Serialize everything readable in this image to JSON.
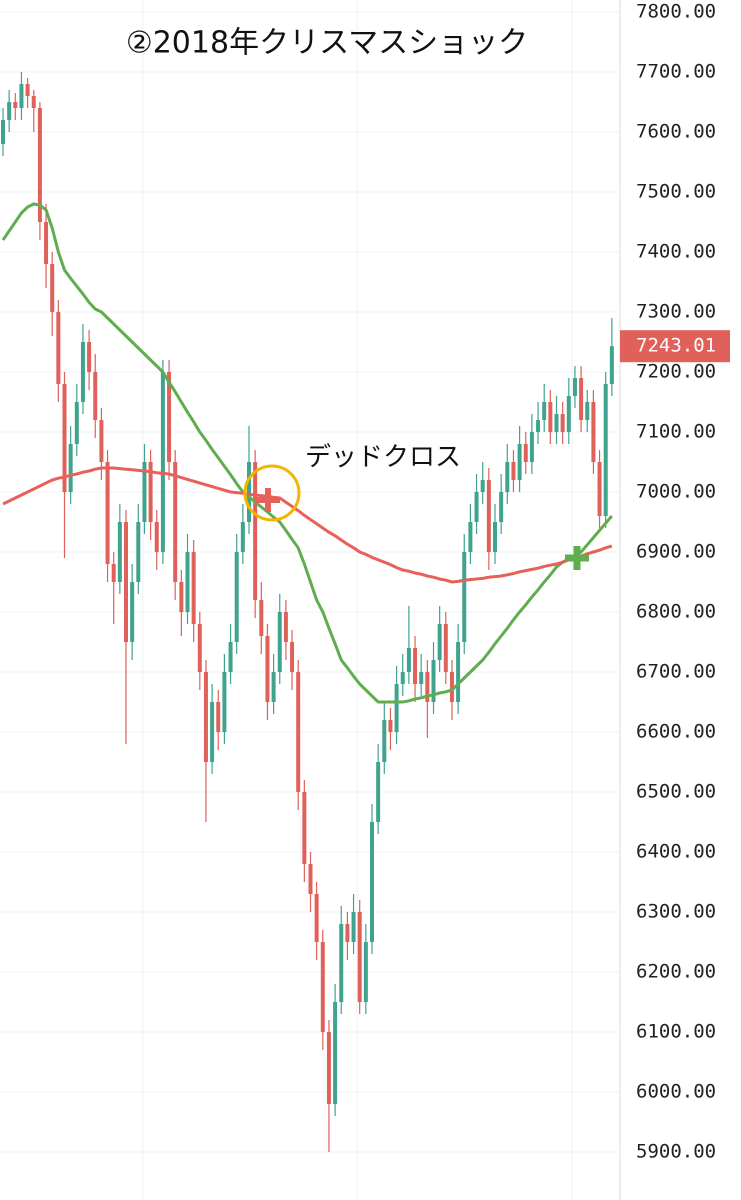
{
  "chart_data": {
    "type": "candlestick",
    "title": "②2018年クリスマスショック",
    "annotations": [
      "デッドクロス"
    ],
    "up_color": "#3fa38e",
    "down_color": "#e0605a",
    "ylim": [
      5820,
      7820
    ],
    "yticks": [
      {
        "value": 5900,
        "label": "5900.00"
      },
      {
        "value": 6000,
        "label": "6000.00"
      },
      {
        "value": 6100,
        "label": "6100.00"
      },
      {
        "value": 6200,
        "label": "6200.00"
      },
      {
        "value": 6300,
        "label": "6300.00"
      },
      {
        "value": 6400,
        "label": "6400.00"
      },
      {
        "value": 6500,
        "label": "6500.00"
      },
      {
        "value": 6600,
        "label": "6600.00"
      },
      {
        "value": 6700,
        "label": "6700.00"
      },
      {
        "value": 6800,
        "label": "6800.00"
      },
      {
        "value": 6900,
        "label": "6900.00"
      },
      {
        "value": 7000,
        "label": "7000.00"
      },
      {
        "value": 7100,
        "label": "7100.00"
      },
      {
        "value": 7200,
        "label": "7200.00"
      },
      {
        "value": 7300,
        "label": "7300.00"
      },
      {
        "value": 7400,
        "label": "7400.00"
      },
      {
        "value": 7500,
        "label": "7500.00"
      },
      {
        "value": 7600,
        "label": "7600.00"
      },
      {
        "value": 7700,
        "label": "7700.00"
      },
      {
        "value": 7800,
        "label": "7800.00"
      }
    ],
    "ohlc": [
      [
        7580,
        7640,
        7560,
        7620
      ],
      [
        7620,
        7670,
        7600,
        7650
      ],
      [
        7650,
        7665,
        7620,
        7640
      ],
      [
        7640,
        7700,
        7620,
        7680
      ],
      [
        7680,
        7690,
        7640,
        7660
      ],
      [
        7660,
        7670,
        7600,
        7640
      ],
      [
        7640,
        7650,
        7420,
        7450
      ],
      [
        7450,
        7480,
        7340,
        7380
      ],
      [
        7380,
        7400,
        7260,
        7300
      ],
      [
        7300,
        7320,
        7150,
        7180
      ],
      [
        7180,
        7200,
        6890,
        7000
      ],
      [
        7000,
        7110,
        6980,
        7080
      ],
      [
        7080,
        7180,
        7060,
        7150
      ],
      [
        7150,
        7280,
        7130,
        7250
      ],
      [
        7250,
        7270,
        7170,
        7200
      ],
      [
        7200,
        7230,
        7090,
        7120
      ],
      [
        7120,
        7140,
        7020,
        7050
      ],
      [
        7050,
        7070,
        6850,
        6880
      ],
      [
        6880,
        6900,
        6780,
        6850
      ],
      [
        6850,
        6980,
        6830,
        6950
      ],
      [
        6950,
        6970,
        6580,
        6750
      ],
      [
        6750,
        6880,
        6720,
        6850
      ],
      [
        6850,
        6980,
        6830,
        6950
      ],
      [
        6950,
        7080,
        6930,
        7050
      ],
      [
        7050,
        7070,
        6920,
        6950
      ],
      [
        6950,
        6970,
        6870,
        6900
      ],
      [
        6900,
        7220,
        6880,
        7200
      ],
      [
        7200,
        7220,
        7020,
        7050
      ],
      [
        7050,
        7070,
        6820,
        6850
      ],
      [
        6850,
        6870,
        6760,
        6800
      ],
      [
        6800,
        6930,
        6780,
        6900
      ],
      [
        6900,
        6920,
        6750,
        6780
      ],
      [
        6780,
        6800,
        6670,
        6700
      ],
      [
        6700,
        6720,
        6450,
        6550
      ],
      [
        6550,
        6680,
        6530,
        6650
      ],
      [
        6650,
        6670,
        6570,
        6600
      ],
      [
        6600,
        6730,
        6580,
        6700
      ],
      [
        6700,
        6780,
        6680,
        6750
      ],
      [
        6750,
        6930,
        6730,
        6900
      ],
      [
        6900,
        6980,
        6880,
        6950
      ],
      [
        6950,
        7110,
        6930,
        7050
      ],
      [
        7050,
        7070,
        6790,
        6820
      ],
      [
        6820,
        6850,
        6730,
        6760
      ],
      [
        6760,
        6780,
        6620,
        6650
      ],
      [
        6650,
        6730,
        6630,
        6700
      ],
      [
        6700,
        6830,
        6680,
        6800
      ],
      [
        6800,
        6820,
        6720,
        6750
      ],
      [
        6750,
        6770,
        6670,
        6700
      ],
      [
        6700,
        6720,
        6470,
        6500
      ],
      [
        6500,
        6520,
        6350,
        6380
      ],
      [
        6380,
        6400,
        6300,
        6330
      ],
      [
        6330,
        6350,
        6220,
        6250
      ],
      [
        6250,
        6270,
        6070,
        6100
      ],
      [
        6100,
        6120,
        5900,
        5980
      ],
      [
        5980,
        6180,
        5960,
        6150
      ],
      [
        6150,
        6310,
        6130,
        6280
      ],
      [
        6280,
        6300,
        6220,
        6250
      ],
      [
        6250,
        6330,
        6230,
        6300
      ],
      [
        6300,
        6320,
        6130,
        6150
      ],
      [
        6150,
        6280,
        6130,
        6250
      ],
      [
        6250,
        6480,
        6230,
        6450
      ],
      [
        6450,
        6580,
        6430,
        6550
      ],
      [
        6550,
        6650,
        6530,
        6620
      ],
      [
        6620,
        6640,
        6570,
        6600
      ],
      [
        6600,
        6710,
        6580,
        6680
      ],
      [
        6680,
        6730,
        6660,
        6700
      ],
      [
        6700,
        6810,
        6680,
        6740
      ],
      [
        6740,
        6760,
        6650,
        6680
      ],
      [
        6680,
        6730,
        6660,
        6700
      ],
      [
        6700,
        6720,
        6590,
        6650
      ],
      [
        6650,
        6750,
        6630,
        6720
      ],
      [
        6720,
        6810,
        6700,
        6780
      ],
      [
        6780,
        6800,
        6680,
        6700
      ],
      [
        6700,
        6720,
        6620,
        6650
      ],
      [
        6650,
        6780,
        6630,
        6750
      ],
      [
        6750,
        6930,
        6730,
        6900
      ],
      [
        6900,
        6980,
        6880,
        6950
      ],
      [
        6950,
        7030,
        6930,
        7000
      ],
      [
        7000,
        7050,
        6980,
        7020
      ],
      [
        7020,
        7040,
        6870,
        6900
      ],
      [
        6900,
        6980,
        6880,
        6950
      ],
      [
        6950,
        7030,
        6930,
        7000
      ],
      [
        7000,
        7080,
        6980,
        7050
      ],
      [
        7050,
        7070,
        7000,
        7020
      ],
      [
        7020,
        7110,
        7000,
        7080
      ],
      [
        7080,
        7100,
        7030,
        7050
      ],
      [
        7050,
        7130,
        7030,
        7100
      ],
      [
        7100,
        7150,
        7080,
        7120
      ],
      [
        7120,
        7180,
        7100,
        7150
      ],
      [
        7150,
        7170,
        7080,
        7100
      ],
      [
        7100,
        7160,
        7080,
        7130
      ],
      [
        7130,
        7150,
        7080,
        7100
      ],
      [
        7100,
        7190,
        7080,
        7160
      ],
      [
        7160,
        7210,
        7140,
        7190
      ],
      [
        7190,
        7210,
        7100,
        7120
      ],
      [
        7120,
        7170,
        7100,
        7150
      ],
      [
        7150,
        7170,
        7030,
        7050
      ],
      [
        7050,
        7070,
        6940,
        6960
      ],
      [
        6960,
        7200,
        6940,
        7180
      ],
      [
        7180,
        7290,
        7160,
        7243.01
      ]
    ],
    "series": [
      {
        "color": "#5fad4e",
        "values": [
          7420,
          7435,
          7450,
          7465,
          7475,
          7480,
          7478,
          7470,
          7440,
          7400,
          7370,
          7356,
          7343,
          7330,
          7316,
          7305,
          7300,
          7290,
          7280,
          7270,
          7260,
          7250,
          7240,
          7230,
          7220,
          7210,
          7200,
          7183,
          7167,
          7150,
          7133,
          7117,
          7100,
          7086,
          7071,
          7057,
          7043,
          7029,
          7014,
          7000,
          6992,
          6983,
          6975,
          6967,
          6958,
          6950,
          6936,
          6921,
          6907,
          6880,
          6850,
          6820,
          6800,
          6773,
          6747,
          6720,
          6707,
          6693,
          6680,
          6670,
          6660,
          6650,
          6650,
          6650,
          6650,
          6650,
          6652,
          6655,
          6657,
          6660,
          6662,
          6665,
          6667,
          6670,
          6680,
          6690,
          6700,
          6710,
          6720,
          6733,
          6747,
          6760,
          6773,
          6787,
          6800,
          6812,
          6825,
          6837,
          6850,
          6862,
          6875,
          6883,
          6889,
          6894,
          6900,
          6912,
          6924,
          6936,
          6948,
          6960
        ]
      },
      {
        "color": "#e8605a",
        "values": [
          6980,
          6985,
          6990,
          6995,
          7000,
          7005,
          7010,
          7015,
          7020,
          7023,
          7025,
          7028,
          7030,
          7033,
          7035,
          7038,
          7040,
          7040,
          7040,
          7039,
          7038,
          7037,
          7036,
          7035,
          7034,
          7032,
          7031,
          7030,
          7027,
          7024,
          7021,
          7018,
          7015,
          7012,
          7009,
          7006,
          7003,
          7000,
          6999,
          6998,
          6996,
          6995,
          6994,
          6993,
          6991,
          6990,
          6983,
          6976,
          6969,
          6961,
          6954,
          6947,
          6940,
          6933,
          6927,
          6920,
          6913,
          6907,
          6900,
          6896,
          6891,
          6887,
          6883,
          6879,
          6874,
          6870,
          6868,
          6865,
          6863,
          6860,
          6858,
          6855,
          6853,
          6850,
          6851,
          6853,
          6854,
          6855,
          6856,
          6858,
          6859,
          6860,
          6862,
          6864,
          6867,
          6869,
          6871,
          6873,
          6876,
          6878,
          6880,
          6883,
          6887,
          6890,
          6893,
          6897,
          6900,
          6903,
          6907,
          6910
        ]
      }
    ]
  }
}
